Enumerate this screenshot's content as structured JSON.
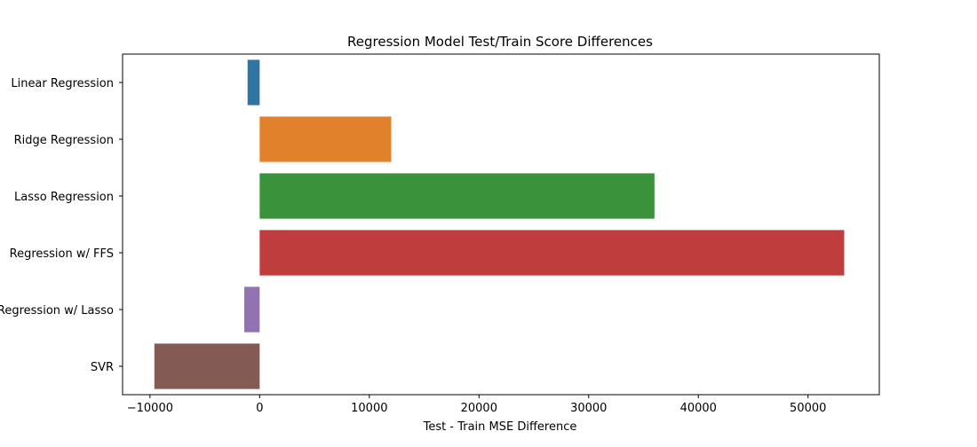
{
  "chart_data": {
    "type": "bar",
    "orientation": "horizontal",
    "title": "Regression Model Test/Train Score Differences",
    "xlabel": "Test - Train MSE Difference",
    "ylabel": "",
    "xlim": [
      -12500,
      56500
    ],
    "xticks": [
      -10000,
      0,
      10000,
      20000,
      30000,
      40000,
      50000
    ],
    "xtick_labels": [
      "−10000",
      "0",
      "10000",
      "20000",
      "30000",
      "40000",
      "50000"
    ],
    "categories": [
      "Linear Regression",
      "Ridge Regression",
      "Lasso Regression",
      "Regression w/ FFS",
      "Regression w/ Lasso",
      "SVR"
    ],
    "values": [
      -1100,
      12000,
      36000,
      53300,
      -1400,
      -9600
    ],
    "colors": [
      "#3274a1",
      "#e1812c",
      "#3a923a",
      "#c03d3e",
      "#9372b2",
      "#845b53"
    ],
    "grid": false,
    "legend": "none"
  }
}
